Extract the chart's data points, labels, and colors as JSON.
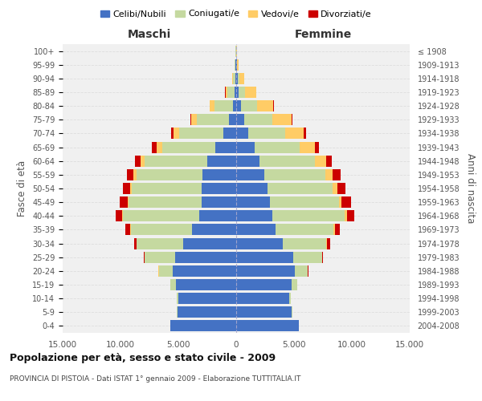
{
  "age_groups": [
    "100+",
    "95-99",
    "90-94",
    "85-89",
    "80-84",
    "75-79",
    "70-74",
    "65-69",
    "60-64",
    "55-59",
    "50-54",
    "45-49",
    "40-44",
    "35-39",
    "30-34",
    "25-29",
    "20-24",
    "15-19",
    "10-14",
    "5-9",
    "0-4"
  ],
  "birth_years": [
    "≤ 1908",
    "1909-1913",
    "1914-1918",
    "1919-1923",
    "1924-1928",
    "1929-1933",
    "1934-1938",
    "1939-1943",
    "1944-1948",
    "1949-1953",
    "1954-1958",
    "1959-1963",
    "1964-1968",
    "1969-1973",
    "1974-1978",
    "1979-1983",
    "1984-1988",
    "1989-1993",
    "1994-1998",
    "1999-2003",
    "2004-2008"
  ],
  "maschi": {
    "celibi": [
      20,
      40,
      80,
      150,
      300,
      600,
      1100,
      1800,
      2500,
      2900,
      3000,
      3000,
      3200,
      3800,
      4600,
      5300,
      5500,
      5200,
      5000,
      5100,
      5700
    ],
    "coniugati": [
      25,
      70,
      200,
      600,
      1600,
      2800,
      3800,
      4600,
      5400,
      5700,
      6000,
      6300,
      6600,
      5300,
      4000,
      2600,
      1200,
      500,
      150,
      60,
      20
    ],
    "vedovi": [
      5,
      15,
      50,
      180,
      380,
      480,
      520,
      480,
      380,
      270,
      180,
      90,
      60,
      40,
      20,
      10,
      5,
      2,
      1,
      0,
      0
    ],
    "divorziati": [
      1,
      4,
      8,
      15,
      30,
      80,
      200,
      380,
      500,
      580,
      620,
      680,
      580,
      420,
      230,
      70,
      15,
      4,
      1,
      0,
      0
    ]
  },
  "femmine": {
    "nubili": [
      15,
      50,
      120,
      220,
      400,
      700,
      1050,
      1600,
      2000,
      2400,
      2700,
      2900,
      3100,
      3400,
      4000,
      4900,
      5100,
      4800,
      4600,
      4800,
      5400
    ],
    "coniugate": [
      15,
      50,
      160,
      550,
      1400,
      2400,
      3200,
      3900,
      4800,
      5300,
      5600,
      6000,
      6300,
      5000,
      3800,
      2500,
      1100,
      450,
      140,
      50,
      15
    ],
    "vedove": [
      25,
      90,
      380,
      950,
      1400,
      1700,
      1600,
      1300,
      950,
      650,
      420,
      230,
      160,
      110,
      55,
      25,
      12,
      4,
      1,
      0,
      0
    ],
    "divorziate": [
      1,
      4,
      8,
      15,
      30,
      70,
      180,
      320,
      520,
      670,
      720,
      780,
      680,
      480,
      240,
      75,
      18,
      4,
      1,
      0,
      0
    ]
  },
  "colors": {
    "celibi": "#4472C4",
    "coniugati": "#C5D9A0",
    "vedovi": "#FFCC66",
    "divorziati": "#CC0000"
  },
  "title": "Popolazione per età, sesso e stato civile - 2009",
  "subtitle": "PROVINCIA DI PISTOIA - Dati ISTAT 1° gennaio 2009 - Elaborazione TUTTITALIA.IT",
  "xlabel_left": "Maschi",
  "xlabel_right": "Femmine",
  "ylabel_left": "Fasce di età",
  "ylabel_right": "Anni di nascita",
  "xlim": 15000,
  "background_color": "#ffffff",
  "grid_color": "#cccccc"
}
